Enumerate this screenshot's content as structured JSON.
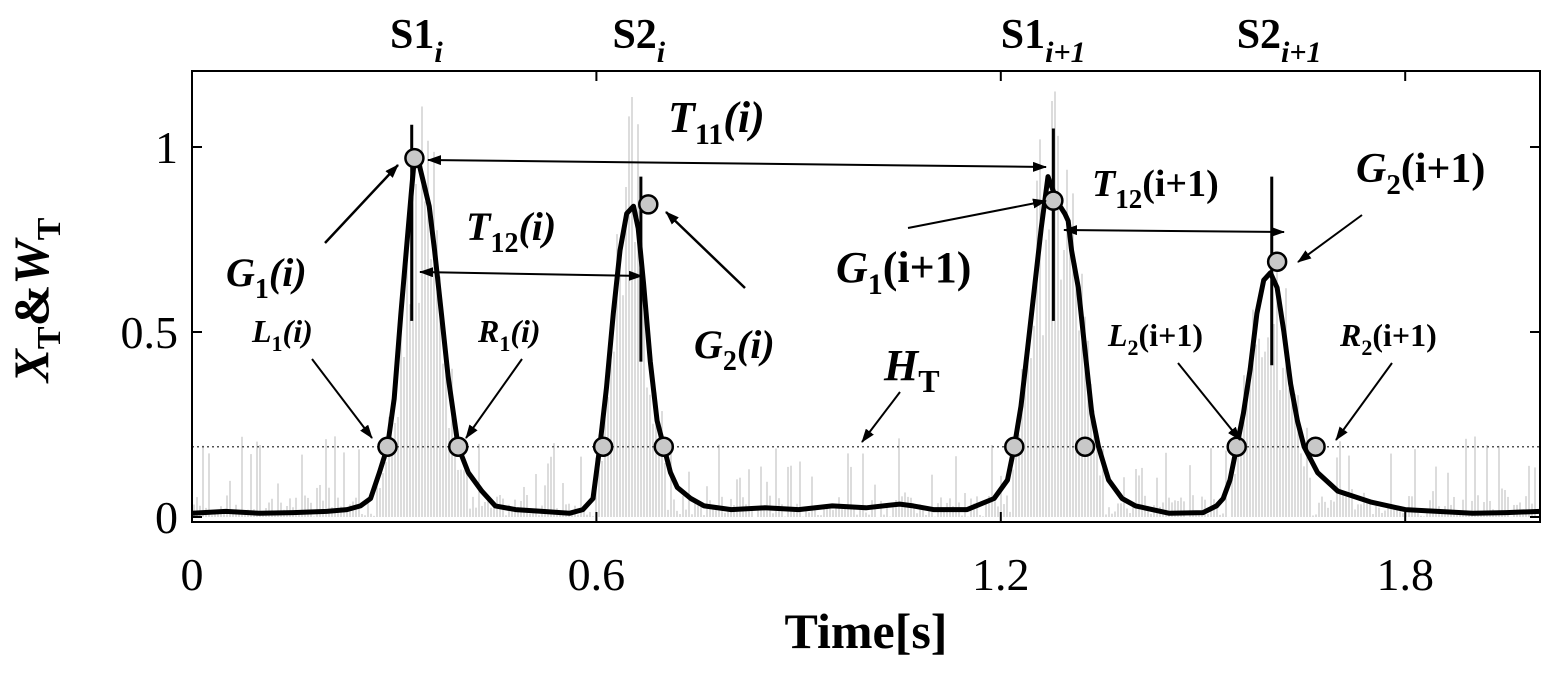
{
  "chart_data": {
    "type": "line",
    "xlabel": "Time[s]",
    "ylabel": {
      "main": "X",
      "sub1": "T",
      "mid": "&",
      "main2": "W",
      "sub2": "T"
    },
    "xlim": [
      0,
      2.0
    ],
    "ylim": [
      0,
      1.2
    ],
    "xticks": [
      {
        "value": 0,
        "label": "0"
      },
      {
        "value": 0.6,
        "label": "0.6"
      },
      {
        "value": 1.2,
        "label": "1.2"
      },
      {
        "value": 1.8,
        "label": "1.8"
      }
    ],
    "yticks": [
      {
        "value": 0,
        "label": "0"
      },
      {
        "value": 0.5,
        "label": "0.5"
      },
      {
        "value": 1,
        "label": "1"
      }
    ],
    "threshold": {
      "value": 0.19,
      "label_main": "H",
      "label_sub": "T"
    },
    "envelope": {
      "x": [
        0,
        0.05,
        0.1,
        0.15,
        0.2,
        0.23,
        0.25,
        0.265,
        0.278,
        0.29,
        0.3,
        0.31,
        0.318,
        0.325,
        0.33,
        0.336,
        0.344,
        0.352,
        0.36,
        0.37,
        0.38,
        0.395,
        0.41,
        0.43,
        0.45,
        0.48,
        0.52,
        0.56,
        0.58,
        0.595,
        0.605,
        0.615,
        0.625,
        0.635,
        0.645,
        0.655,
        0.662,
        0.67,
        0.68,
        0.69,
        0.7,
        0.71,
        0.72,
        0.74,
        0.76,
        0.8,
        0.85,
        0.9,
        0.95,
        1.0,
        1.05,
        1.07,
        1.1,
        1.15,
        1.19,
        1.21,
        1.22,
        1.23,
        1.24,
        1.25,
        1.26,
        1.27,
        1.278,
        1.288,
        1.295,
        1.3,
        1.305,
        1.315,
        1.325,
        1.335,
        1.345,
        1.36,
        1.38,
        1.4,
        1.45,
        1.5,
        1.52,
        1.53,
        1.54,
        1.55,
        1.56,
        1.57,
        1.58,
        1.59,
        1.6,
        1.61,
        1.62,
        1.63,
        1.64,
        1.65,
        1.67,
        1.7,
        1.75,
        1.8,
        1.9,
        1.95,
        2.0
      ],
      "y": [
        0.01,
        0.015,
        0.01,
        0.012,
        0.015,
        0.02,
        0.03,
        0.05,
        0.12,
        0.19,
        0.32,
        0.55,
        0.72,
        0.87,
        0.97,
        0.96,
        0.9,
        0.84,
        0.72,
        0.55,
        0.38,
        0.19,
        0.12,
        0.07,
        0.03,
        0.02,
        0.015,
        0.01,
        0.02,
        0.05,
        0.19,
        0.35,
        0.55,
        0.72,
        0.82,
        0.84,
        0.78,
        0.63,
        0.42,
        0.26,
        0.19,
        0.12,
        0.08,
        0.05,
        0.03,
        0.02,
        0.025,
        0.02,
        0.03,
        0.025,
        0.035,
        0.03,
        0.02,
        0.02,
        0.05,
        0.1,
        0.19,
        0.3,
        0.46,
        0.62,
        0.78,
        0.92,
        0.88,
        0.84,
        0.82,
        0.8,
        0.72,
        0.62,
        0.45,
        0.28,
        0.19,
        0.1,
        0.05,
        0.03,
        0.01,
        0.012,
        0.03,
        0.05,
        0.1,
        0.19,
        0.28,
        0.4,
        0.55,
        0.64,
        0.66,
        0.62,
        0.5,
        0.36,
        0.26,
        0.19,
        0.12,
        0.07,
        0.04,
        0.02,
        0.01,
        0.012,
        0.015
      ]
    },
    "peak_lines": [
      {
        "x": 0.326,
        "y_top": 1.06,
        "y_bottom": 0.53
      },
      {
        "x": 0.666,
        "y_top": 0.92,
        "y_bottom": 0.42
      },
      {
        "x": 1.278,
        "y_top": 1.05,
        "y_bottom": 0.53
      },
      {
        "x": 1.602,
        "y_top": 0.92,
        "y_bottom": 0.41
      }
    ],
    "markers": [
      {
        "x": 0.33,
        "y": 0.97
      },
      {
        "x": 0.677,
        "y": 0.845
      },
      {
        "x": 1.278,
        "y": 0.855
      },
      {
        "x": 1.61,
        "y": 0.69
      },
      {
        "x": 0.29,
        "y": 0.19
      },
      {
        "x": 0.395,
        "y": 0.19
      },
      {
        "x": 0.61,
        "y": 0.19
      },
      {
        "x": 0.7,
        "y": 0.19
      },
      {
        "x": 1.22,
        "y": 0.19
      },
      {
        "x": 1.325,
        "y": 0.19
      },
      {
        "x": 1.55,
        "y": 0.19
      },
      {
        "x": 1.667,
        "y": 0.19
      }
    ],
    "top_labels": [
      {
        "x": 0.37,
        "main": "S1",
        "sub": "i"
      },
      {
        "x": 0.7,
        "main": "S2",
        "sub": "i"
      },
      {
        "x": 1.3,
        "main": "S1",
        "sub": "i+1"
      },
      {
        "x": 1.65,
        "main": "S2",
        "sub": "i+1"
      }
    ],
    "annotations": {
      "T11_i": {
        "main": "T",
        "sub": "11",
        "arg": "(i)"
      },
      "T12_i": {
        "main": "T",
        "sub": "12",
        "arg": "(i)"
      },
      "T12_i1": {
        "main": "T",
        "sub": "12",
        "arg": "(i+1)"
      },
      "G1_i": {
        "main": "G",
        "sub": "1",
        "arg": "(i)"
      },
      "G2_i": {
        "main": "G",
        "sub": "2",
        "arg": "(i)"
      },
      "G1_i1": {
        "main": "G",
        "sub": "1",
        "arg": "(i+1)"
      },
      "G2_i1": {
        "main": "G",
        "sub": "2",
        "arg": "(i+1)"
      },
      "L1_i": {
        "main": "L",
        "sub": "1",
        "arg": "(i)"
      },
      "R1_i": {
        "main": "R",
        "sub": "1",
        "arg": "(i)"
      },
      "L2_i1": {
        "main": "L",
        "sub": "2",
        "arg": "(i+1)"
      },
      "R2_i1": {
        "main": "R",
        "sub": "2",
        "arg": "(i+1)"
      }
    },
    "colors": {
      "envelope": "#000000",
      "raw": "#c4c4c4",
      "marker_fill": "#c8c8c8",
      "threshold": "#555555"
    }
  }
}
